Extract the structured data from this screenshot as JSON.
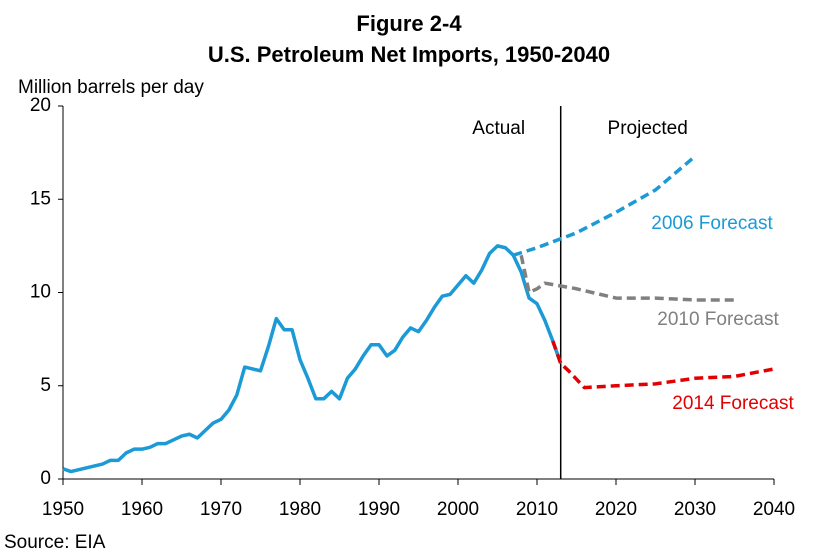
{
  "chart_data": {
    "type": "line",
    "title": "Figure 2-4",
    "subtitle": "U.S. Petroleum Net Imports, 1950-2040",
    "y_label": "Million barrels per day",
    "source": "Source: EIA",
    "xlim": [
      1950,
      2040
    ],
    "xticks": [
      1950,
      1960,
      1970,
      1980,
      1990,
      2000,
      2010,
      2020,
      2030,
      2040
    ],
    "ylim": [
      0,
      20
    ],
    "yticks": [
      0,
      5,
      10,
      15,
      20
    ],
    "divider_x": 2013,
    "annotations": [
      "Actual",
      "Projected"
    ],
    "series": [
      {
        "color": "#1b9ad6",
        "dashed": false,
        "x": [
          1950,
          1951,
          1952,
          1953,
          1954,
          1955,
          1956,
          1957,
          1958,
          1959,
          1960,
          1961,
          1962,
          1963,
          1964,
          1965,
          1966,
          1967,
          1968,
          1969,
          1970,
          1971,
          1972,
          1973,
          1974,
          1975,
          1976,
          1977,
          1978,
          1979,
          1980,
          1981,
          1982,
          1983,
          1984,
          1985,
          1986,
          1987,
          1988,
          1989,
          1990,
          1991,
          1992,
          1993,
          1994,
          1995,
          1996,
          1997,
          1998,
          1999,
          2000,
          2001,
          2002,
          2003,
          2004,
          2005,
          2006,
          2007,
          2008,
          2009,
          2010,
          2011,
          2012,
          2013
        ],
        "values": [
          0.55,
          0.4,
          0.5,
          0.6,
          0.7,
          0.8,
          1.0,
          1.0,
          1.4,
          1.6,
          1.6,
          1.7,
          1.9,
          1.9,
          2.1,
          2.3,
          2.4,
          2.2,
          2.6,
          3.0,
          3.2,
          3.7,
          4.5,
          6.0,
          5.9,
          5.8,
          7.1,
          8.6,
          8.0,
          8.0,
          6.4,
          5.4,
          4.3,
          4.3,
          4.7,
          4.3,
          5.4,
          5.9,
          6.6,
          7.2,
          7.2,
          6.6,
          6.9,
          7.6,
          8.1,
          7.9,
          8.5,
          9.2,
          9.8,
          9.9,
          10.4,
          10.9,
          10.5,
          11.2,
          12.1,
          12.5,
          12.4,
          12.0,
          11.1,
          9.7,
          9.4,
          8.5,
          7.4,
          6.2
        ]
      },
      {
        "name": "2006 Forecast",
        "color": "#1b9ad6",
        "dashed": true,
        "x": [
          2007,
          2010,
          2015,
          2020,
          2025,
          2030
        ],
        "values": [
          12.0,
          12.4,
          13.2,
          14.3,
          15.5,
          17.3
        ]
      },
      {
        "name": "2010 Forecast",
        "color": "#808080",
        "dashed": true,
        "x": [
          2008,
          2009,
          2010,
          2011,
          2015,
          2020,
          2025,
          2030,
          2035
        ],
        "values": [
          12.0,
          10.0,
          10.2,
          10.5,
          10.2,
          9.7,
          9.7,
          9.6,
          9.6
        ]
      },
      {
        "name": "2014 Forecast",
        "color": "#e30000",
        "dashed": true,
        "x": [
          2012,
          2013,
          2014,
          2016,
          2020,
          2025,
          2030,
          2035,
          2040
        ],
        "values": [
          7.4,
          6.2,
          5.8,
          4.9,
          5.0,
          5.1,
          5.4,
          5.5,
          5.9
        ]
      }
    ]
  }
}
